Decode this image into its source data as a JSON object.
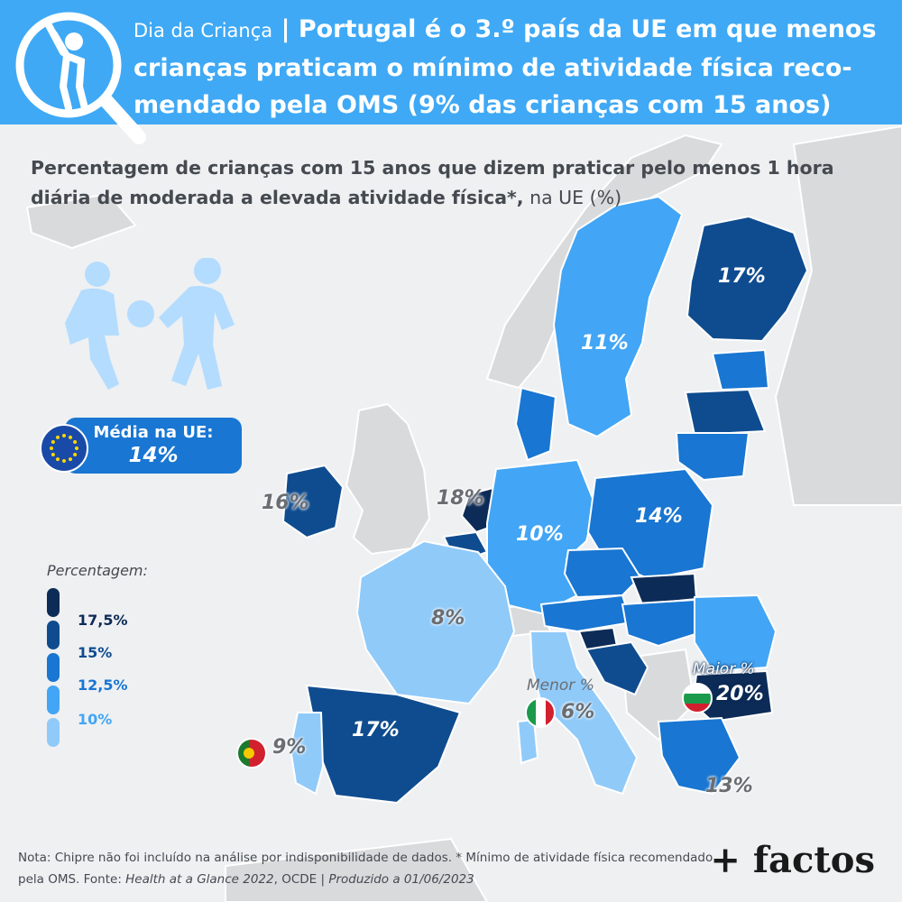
{
  "header": {
    "kicker": "Dia da Criança",
    "separator": "|",
    "headline": "Portugal é o 3.º país da UE em que menos crianças praticam o mínimo de atividade física reco-mendado pela OMS (9% das crianças com 15 anos)"
  },
  "subtitle": {
    "bold_text": "Percentagem de crianças com 15 anos que dizem praticar pelo menos 1 hora diária de moderada a elevada atividade física*,",
    "light_text": " na UE (%)"
  },
  "eu_average": {
    "label": "Média na UE:",
    "value": "14%"
  },
  "legend": {
    "title": "Percentagem:",
    "items": [
      {
        "label": "17,5%",
        "color": "#0d2b57"
      },
      {
        "label": "15%",
        "color": "#0f4c8f"
      },
      {
        "label": "12,5%",
        "color": "#1976d2"
      },
      {
        "label": "10%",
        "color": "#42a5f5"
      },
      {
        "label": "",
        "color": "#90caf9"
      }
    ]
  },
  "country_values": [
    {
      "country": "Finlândia",
      "value": "17%"
    },
    {
      "country": "Suécia",
      "value": "11%"
    },
    {
      "country": "Irlanda",
      "value": "16%"
    },
    {
      "country": "Países Baixos",
      "value": "18%"
    },
    {
      "country": "Alemanha",
      "value": "10%"
    },
    {
      "country": "Polónia",
      "value": "14%"
    },
    {
      "country": "França",
      "value": "8%"
    },
    {
      "country": "Espanha",
      "value": "17%"
    },
    {
      "country": "Portugal",
      "value": "9%"
    },
    {
      "country": "Itália",
      "value": "6%"
    },
    {
      "country": "Bulgária",
      "value": "20%"
    },
    {
      "country": "Grécia",
      "value": "13%"
    }
  ],
  "callouts": {
    "lowest": "Menor %",
    "highest": "Maior %"
  },
  "flags": [
    "portugal-flag",
    "italy-flag",
    "bulgaria-flag",
    "eu-flag"
  ],
  "colors": {
    "banner": "#3fa9f5",
    "darkest": "#0d2b57",
    "dark": "#0f4c8f",
    "mid": "#1976d2",
    "light": "#42a5f5",
    "lightest": "#90caf9",
    "non_eu": "#d9dadc"
  },
  "footer": {
    "note": "Nota: Chipre não foi incluído na análise por indisponibilidade de dados. * Mínimo de atividade física recomendado pela OMS. Fonte: ",
    "source_title": "Health at a Glance 2022",
    "source_org": ", OCDE | ",
    "produced": "Produzido a 01/06/2023"
  },
  "brand": "+ factos"
}
